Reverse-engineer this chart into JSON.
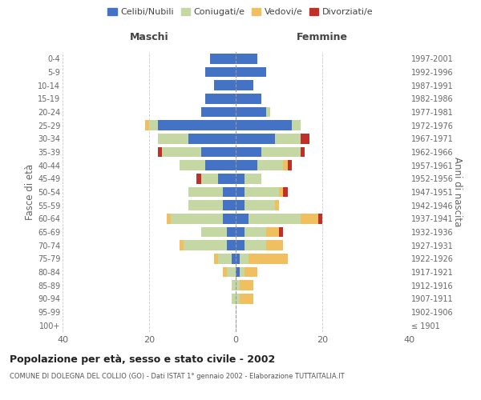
{
  "age_groups": [
    "100+",
    "95-99",
    "90-94",
    "85-89",
    "80-84",
    "75-79",
    "70-74",
    "65-69",
    "60-64",
    "55-59",
    "50-54",
    "45-49",
    "40-44",
    "35-39",
    "30-34",
    "25-29",
    "20-24",
    "15-19",
    "10-14",
    "5-9",
    "0-4"
  ],
  "birth_years": [
    "≤ 1901",
    "1902-1906",
    "1907-1911",
    "1912-1916",
    "1917-1921",
    "1922-1926",
    "1927-1931",
    "1932-1936",
    "1937-1941",
    "1942-1946",
    "1947-1951",
    "1952-1956",
    "1957-1961",
    "1962-1966",
    "1967-1971",
    "1972-1976",
    "1977-1981",
    "1982-1986",
    "1987-1991",
    "1992-1996",
    "1997-2001"
  ],
  "maschi": {
    "celibi": [
      0,
      0,
      0,
      0,
      0,
      1,
      2,
      2,
      3,
      3,
      3,
      4,
      7,
      8,
      11,
      18,
      8,
      7,
      5,
      7,
      6
    ],
    "coniugati": [
      0,
      0,
      1,
      1,
      2,
      3,
      10,
      6,
      12,
      8,
      8,
      4,
      6,
      9,
      7,
      2,
      0,
      0,
      0,
      0,
      0
    ],
    "vedovi": [
      0,
      0,
      0,
      0,
      1,
      1,
      1,
      0,
      1,
      0,
      0,
      0,
      0,
      0,
      0,
      1,
      0,
      0,
      0,
      0,
      0
    ],
    "divorziati": [
      0,
      0,
      0,
      0,
      0,
      0,
      0,
      0,
      0,
      0,
      0,
      1,
      0,
      1,
      0,
      0,
      0,
      0,
      0,
      0,
      0
    ]
  },
  "femmine": {
    "nubili": [
      0,
      0,
      0,
      0,
      1,
      1,
      2,
      2,
      3,
      2,
      2,
      2,
      5,
      6,
      9,
      13,
      7,
      6,
      4,
      7,
      5
    ],
    "coniugate": [
      0,
      0,
      1,
      1,
      1,
      2,
      5,
      5,
      12,
      7,
      8,
      4,
      6,
      9,
      6,
      2,
      1,
      0,
      0,
      0,
      0
    ],
    "vedove": [
      0,
      0,
      3,
      3,
      3,
      9,
      4,
      3,
      4,
      1,
      1,
      0,
      1,
      0,
      0,
      0,
      0,
      0,
      0,
      0,
      0
    ],
    "divorziate": [
      0,
      0,
      0,
      0,
      0,
      0,
      0,
      1,
      1,
      0,
      1,
      0,
      1,
      1,
      2,
      0,
      0,
      0,
      0,
      0,
      0
    ]
  },
  "colors": {
    "celibi_nubili": "#4472c4",
    "coniugati": "#c5d8a4",
    "vedovi": "#f0c060",
    "divorziati": "#c0302a"
  },
  "xlim": 40,
  "title": "Popolazione per età, sesso e stato civile - 2002",
  "subtitle": "COMUNE DI DOLEGNA DEL COLLIO (GO) - Dati ISTAT 1° gennaio 2002 - Elaborazione TUTTAITALIA.IT",
  "ylabel_left": "Fasce di età",
  "ylabel_right": "Anni di nascita",
  "xlabel_maschi": "Maschi",
  "xlabel_femmine": "Femmine",
  "legend_labels": [
    "Celibi/Nubili",
    "Coniugati/e",
    "Vedovi/e",
    "Divorziati/e"
  ],
  "bg_color": "#ffffff",
  "grid_color": "#cccccc"
}
